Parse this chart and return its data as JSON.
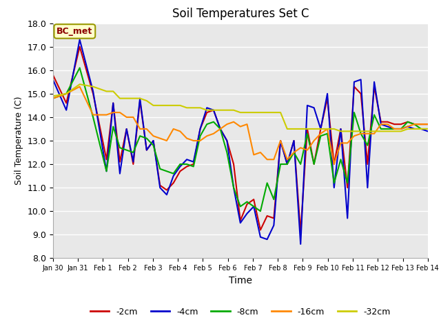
{
  "title": "Soil Temperatures Set C",
  "xlabel": "Time",
  "ylabel": "Soil Temperature (C)",
  "ylim": [
    8.0,
    18.0
  ],
  "yticks": [
    8.0,
    9.0,
    10.0,
    11.0,
    12.0,
    13.0,
    14.0,
    15.0,
    16.0,
    17.0,
    18.0
  ],
  "fig_bg_color": "#ffffff",
  "plot_bg_color": "#e8e8e8",
  "annotation_label": "BC_met",
  "annotation_text_color": "#8b0000",
  "annotation_bg_color": "#ffffcc",
  "annotation_border_color": "#999900",
  "series_colors": [
    "#cc0000",
    "#0000cc",
    "#00aa00",
    "#ff8800",
    "#cccc00"
  ],
  "series_labels": [
    "-2cm",
    "-4cm",
    "-8cm",
    "-16cm",
    "-32cm"
  ],
  "x_tick_labels": [
    "Jan 30",
    "Jan 31",
    "Feb 1",
    "Feb 2",
    "Feb 3",
    "Feb 4",
    "Feb 5",
    "Feb 6",
    "Feb 7",
    "Feb 8",
    "Feb 9",
    "Feb 10",
    "Feb 11",
    "Feb 12",
    "Feb 13",
    "Feb 14"
  ],
  "data": {
    "x_days": [
      0,
      0.5,
      1,
      1.5,
      2,
      2.25,
      2.5,
      2.75,
      3,
      3.25,
      3.5,
      3.75,
      4,
      4.25,
      4.5,
      4.75,
      5,
      5.25,
      5.5,
      5.75,
      6,
      6.25,
      6.5,
      6.75,
      7,
      7.25,
      7.5,
      7.75,
      8,
      8.25,
      8.5,
      8.75,
      9,
      9.25,
      9.5,
      9.75,
      10,
      10.25,
      10.5,
      10.75,
      11,
      11.25,
      11.5,
      11.75,
      12,
      12.25,
      12.5,
      12.75,
      13,
      13.25,
      13.5,
      13.75,
      14
    ],
    "cm2": [
      15.8,
      14.6,
      17.0,
      15.0,
      12.2,
      14.6,
      12.1,
      13.5,
      12.0,
      14.7,
      12.6,
      13.0,
      11.1,
      10.9,
      11.2,
      11.7,
      11.9,
      12.0,
      13.5,
      14.2,
      14.3,
      13.5,
      13.0,
      12.0,
      9.6,
      10.3,
      10.5,
      9.2,
      9.8,
      9.7,
      13.0,
      12.0,
      13.0,
      9.1,
      13.5,
      12.0,
      13.5,
      14.8,
      12.0,
      13.5,
      11.0,
      15.3,
      15.0,
      12.0,
      15.3,
      13.8,
      13.8,
      13.7,
      13.7,
      13.8,
      13.7,
      13.7,
      13.7
    ],
    "cm4": [
      15.6,
      14.3,
      17.3,
      15.1,
      11.7,
      14.6,
      11.6,
      13.5,
      12.1,
      14.8,
      12.6,
      13.0,
      11.0,
      10.7,
      11.5,
      11.9,
      12.2,
      12.1,
      13.5,
      14.4,
      14.3,
      13.5,
      13.0,
      11.0,
      9.5,
      9.9,
      10.2,
      8.9,
      8.8,
      9.4,
      13.0,
      12.0,
      13.0,
      8.6,
      14.5,
      14.4,
      13.5,
      15.0,
      11.0,
      13.5,
      9.7,
      15.5,
      15.6,
      11.0,
      15.5,
      13.7,
      13.6,
      13.5,
      13.5,
      13.6,
      13.5,
      13.5,
      13.4
    ],
    "cm8": [
      14.8,
      15.0,
      16.1,
      14.0,
      11.7,
      13.6,
      12.7,
      12.6,
      12.5,
      13.2,
      13.1,
      12.8,
      11.8,
      11.7,
      11.6,
      12.0,
      12.0,
      11.9,
      13.2,
      13.7,
      13.8,
      13.5,
      12.5,
      11.0,
      10.2,
      10.4,
      10.2,
      10.0,
      11.2,
      10.5,
      12.0,
      12.0,
      12.5,
      12.0,
      13.3,
      12.0,
      13.2,
      13.3,
      11.2,
      12.2,
      11.2,
      14.2,
      13.3,
      12.8,
      14.1,
      13.5,
      13.5,
      13.5,
      13.5,
      13.8,
      13.7,
      13.5,
      13.5
    ],
    "cm16": [
      14.8,
      15.0,
      15.3,
      14.1,
      14.1,
      14.2,
      14.2,
      14.0,
      14.0,
      13.5,
      13.5,
      13.2,
      13.1,
      13.0,
      13.5,
      13.4,
      13.1,
      13.0,
      13.0,
      13.2,
      13.3,
      13.5,
      13.7,
      13.8,
      13.6,
      13.7,
      12.4,
      12.5,
      12.2,
      12.2,
      13.0,
      12.2,
      12.5,
      12.7,
      12.6,
      13.0,
      13.3,
      13.5,
      12.0,
      12.9,
      12.9,
      13.2,
      13.3,
      13.3,
      13.3,
      13.7,
      13.7,
      13.5,
      13.5,
      13.6,
      13.7,
      13.7,
      13.7
    ],
    "cm32": [
      14.9,
      15.0,
      15.4,
      15.3,
      15.1,
      15.1,
      14.8,
      14.8,
      14.8,
      14.8,
      14.7,
      14.5,
      14.5,
      14.5,
      14.5,
      14.5,
      14.4,
      14.4,
      14.4,
      14.3,
      14.3,
      14.3,
      14.3,
      14.3,
      14.2,
      14.2,
      14.2,
      14.2,
      14.2,
      14.2,
      14.2,
      13.5,
      13.5,
      13.5,
      13.5,
      13.5,
      13.5,
      13.5,
      13.5,
      13.4,
      13.4,
      13.4,
      13.4,
      13.4,
      13.4,
      13.4,
      13.4,
      13.4,
      13.4,
      13.5,
      13.5,
      13.5,
      13.5
    ]
  }
}
